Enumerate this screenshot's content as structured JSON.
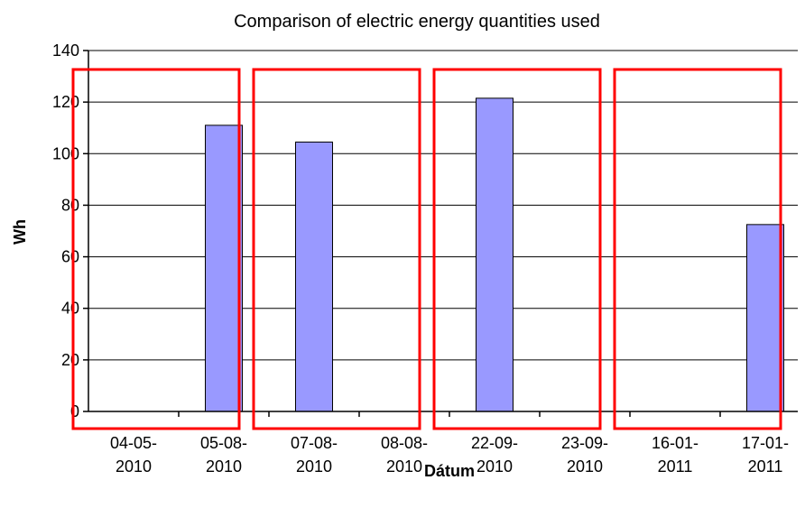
{
  "chart_data": {
    "type": "bar",
    "title": "Comparison of electric energy quantities used",
    "xlabel": "Dátum",
    "ylabel": "Wh",
    "ylim": [
      0,
      140
    ],
    "yticks": [
      0,
      20,
      40,
      60,
      80,
      100,
      120,
      140
    ],
    "grid": true,
    "legend": "none",
    "categories": [
      [
        "04-05-",
        "2010"
      ],
      [
        "05-08-",
        "2010"
      ],
      [
        "07-08-",
        "2010"
      ],
      [
        "08-08-",
        "2010"
      ],
      [
        "22-09-",
        "2010"
      ],
      [
        "23-09-",
        "2010"
      ],
      [
        "16-01-",
        "2011"
      ],
      [
        "17-01-",
        "2011"
      ]
    ],
    "values": [
      0,
      111,
      104.5,
      0,
      121.5,
      0,
      0,
      72.5
    ],
    "bar_color": "#9999ff",
    "highlight_boxes": [
      {
        "from_category": 0,
        "to_category": 1
      },
      {
        "from_category": 2,
        "to_category": 3
      },
      {
        "from_category": 4,
        "to_category": 5
      },
      {
        "from_category": 6,
        "to_category": 7
      }
    ],
    "highlight_color": "#ff0000"
  }
}
